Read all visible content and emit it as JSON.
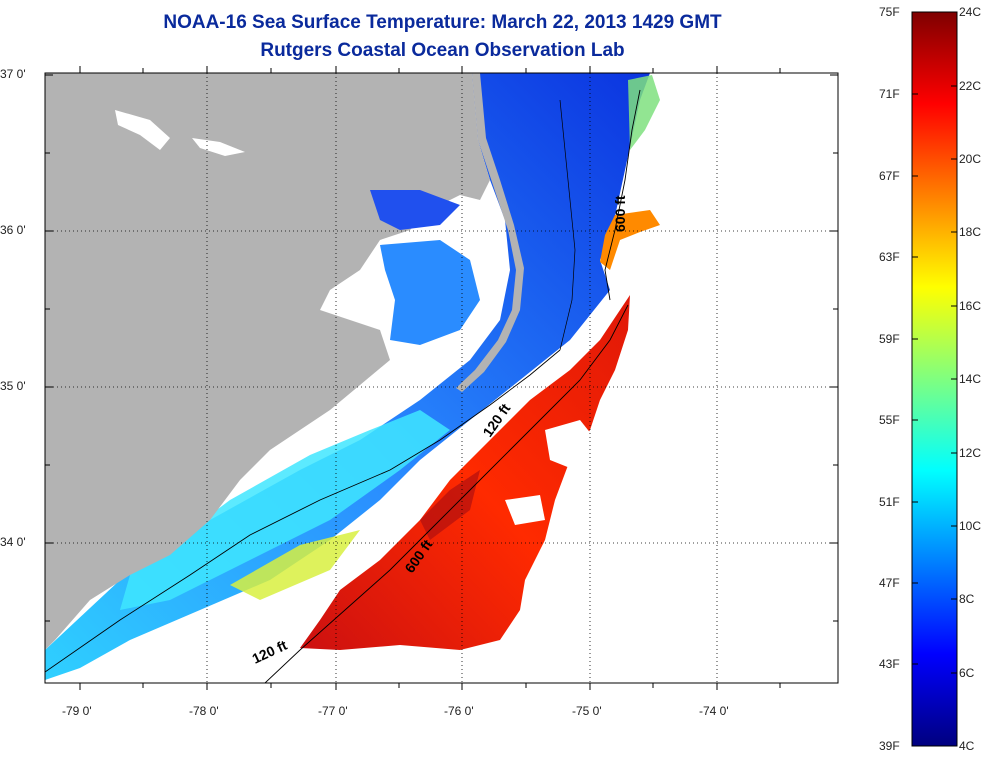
{
  "title": {
    "line1": "NOAA-16 Sea Surface Temperature:  March 22, 2013 1429 GMT",
    "line2": "Rutgers Coastal Ocean Observation Lab"
  },
  "map": {
    "lat_labels": [
      "37 0'",
      "36 0'",
      "35 0'",
      "34 0'"
    ],
    "lon_labels": [
      "-79 0'",
      "-78 0'",
      "-77 0'",
      "-76 0'",
      "-75 0'",
      "-74 0'"
    ],
    "contour_labels": [
      "600 ft",
      "120 ft",
      "600 ft",
      "120 ft"
    ],
    "land_color": "#b3b3b3",
    "no_data_color": "#ffffff"
  },
  "colorbar": {
    "fahrenheit_labels": [
      "75F",
      "71F",
      "67F",
      "63F",
      "59F",
      "55F",
      "51F",
      "47F",
      "43F",
      "39F"
    ],
    "celsius_labels": [
      "24C",
      "22C",
      "20C",
      "18C",
      "16C",
      "14C",
      "12C",
      "10C",
      "8C",
      "6C",
      "4C"
    ],
    "colormap": "jet",
    "range_c": [
      4,
      24
    ],
    "range_f": [
      39,
      75
    ]
  }
}
